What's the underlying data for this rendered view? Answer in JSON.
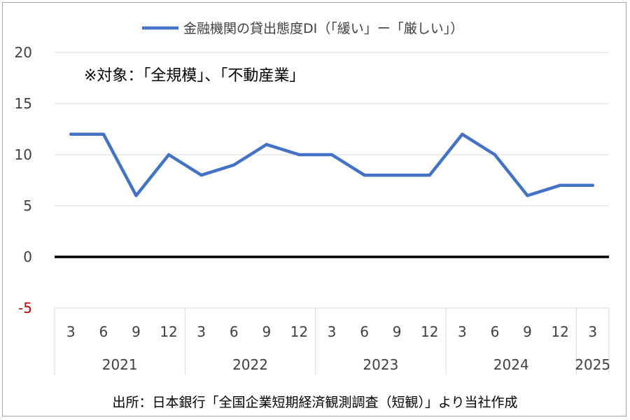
{
  "chart_data": {
    "type": "line",
    "legend_position": "top",
    "series": [
      {
        "name": "金融機関の貸出態度DI（「緩い」ー「厳しい」）",
        "color": "#4472c4",
        "values": [
          12,
          12,
          6,
          10,
          8,
          9,
          11,
          10,
          10,
          8,
          8,
          8,
          12,
          10,
          6,
          7,
          7
        ]
      }
    ],
    "x": {
      "months": [
        "3",
        "6",
        "9",
        "12",
        "3",
        "6",
        "9",
        "12",
        "3",
        "6",
        "9",
        "12",
        "3",
        "6",
        "9",
        "12",
        "3"
      ],
      "years": [
        {
          "label": "2021",
          "count": 4
        },
        {
          "label": "2022",
          "count": 4
        },
        {
          "label": "2023",
          "count": 4
        },
        {
          "label": "2024",
          "count": 4
        },
        {
          "label": "2025",
          "count": 1
        }
      ]
    },
    "ylim": [
      -5,
      20
    ],
    "yticks": [
      "20",
      "15",
      "10",
      "5",
      "0",
      "-5"
    ],
    "negative_tick_color": "#c00000",
    "grid": true,
    "annotation": "※対象：「全規模」、「不動産業」"
  },
  "source": "出所：日本銀行「全国企業短期経済観測調査（短観）」より当社作成"
}
